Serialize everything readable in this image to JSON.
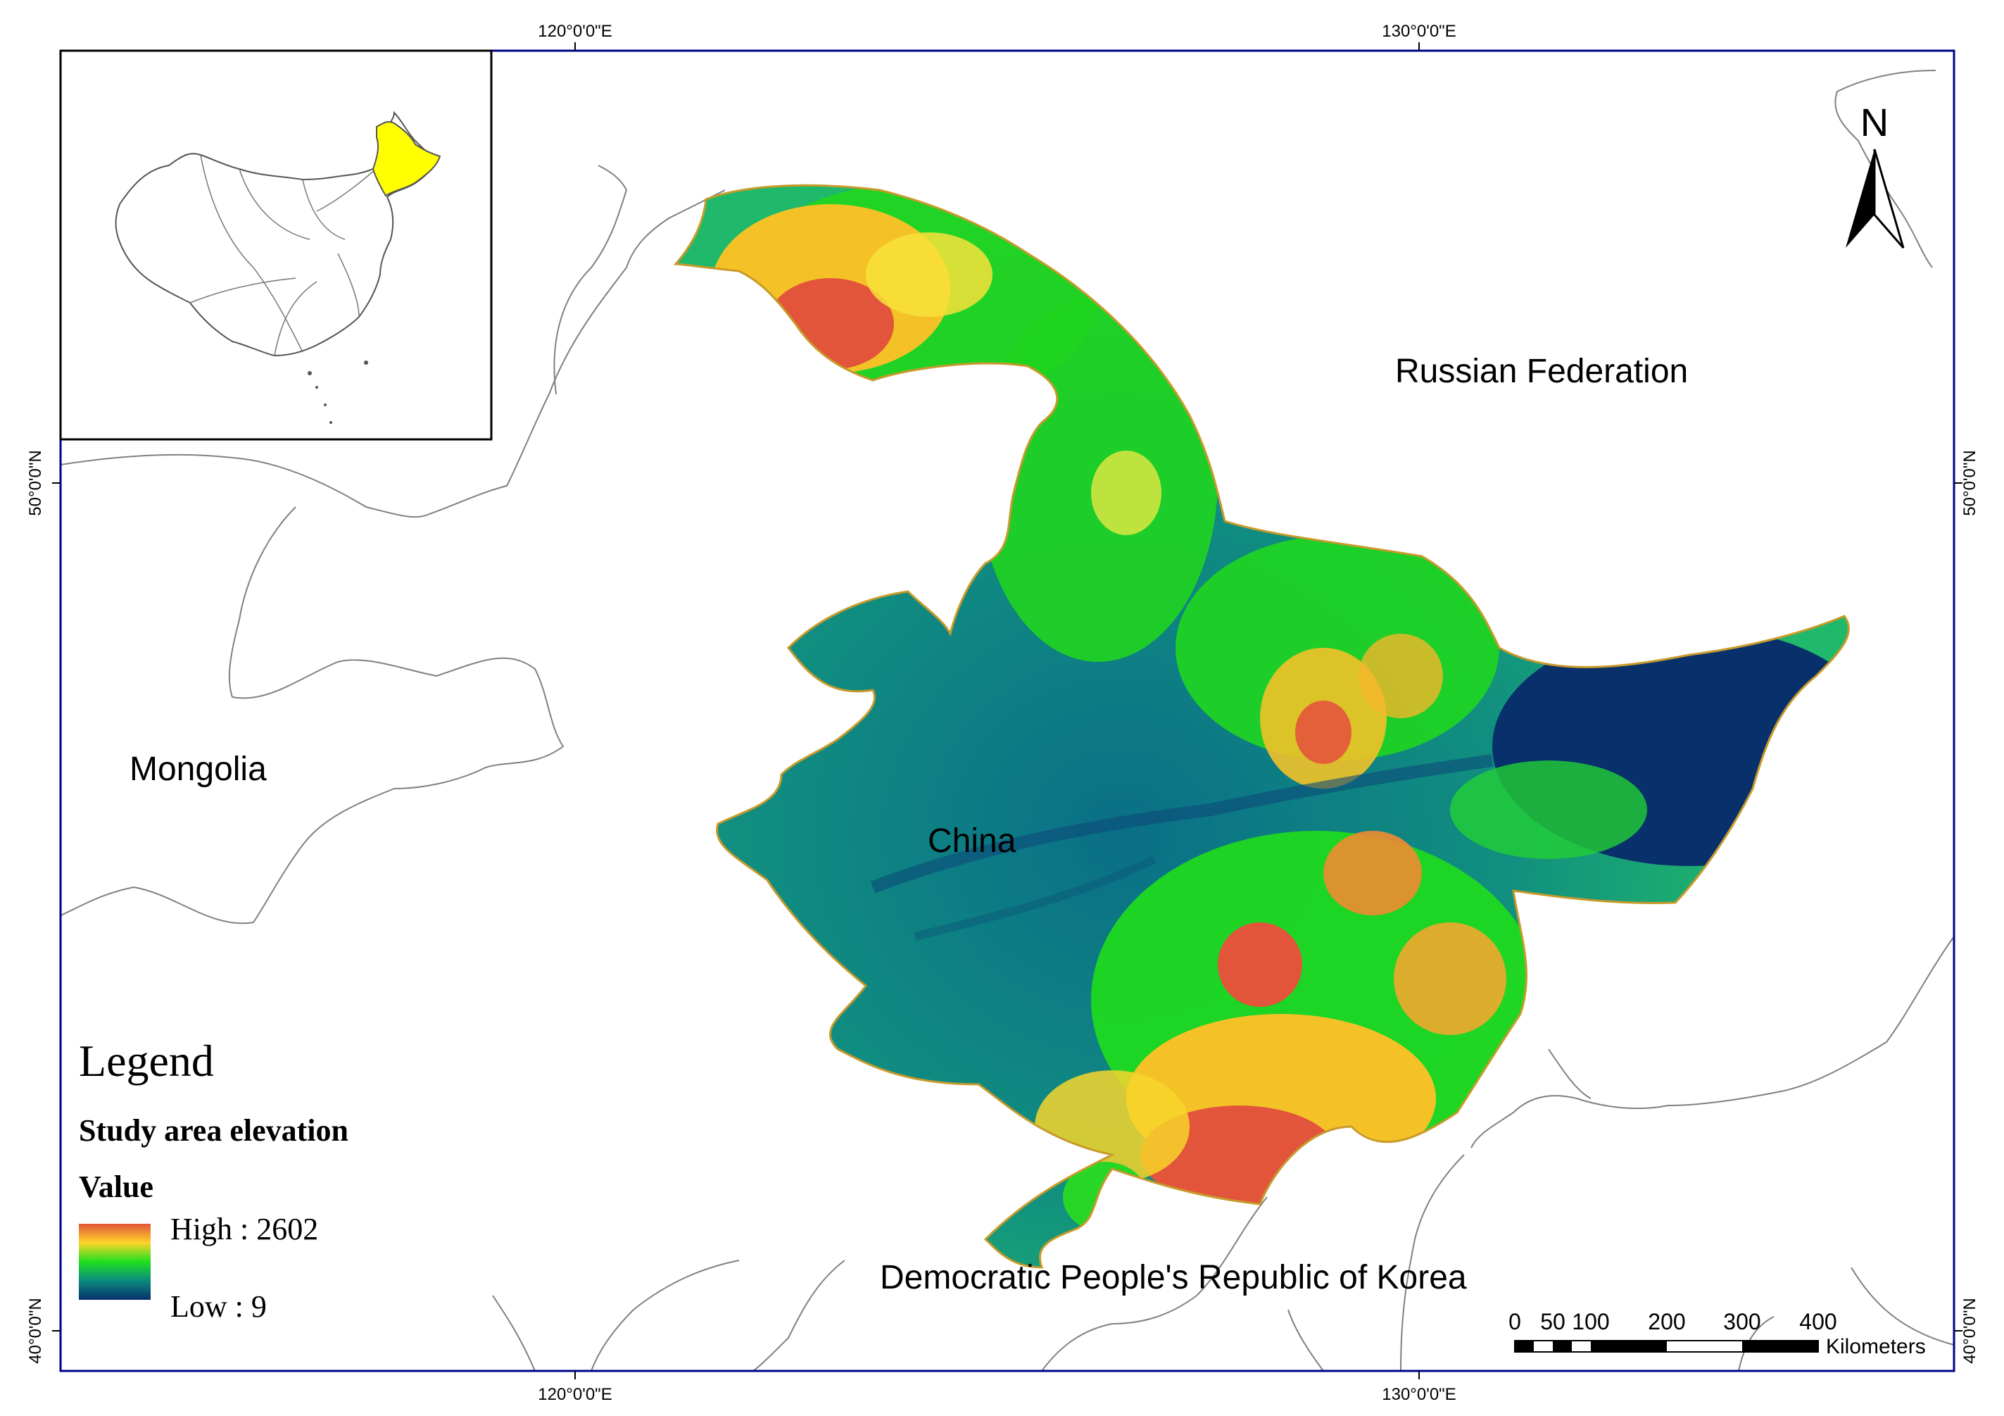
{
  "grid": {
    "top_labels": [
      "120°0'0\"E",
      "130°0'0\"E"
    ],
    "bottom_labels": [
      "120°0'0\"E",
      "130°0'0\"E"
    ],
    "left_labels": [
      "50°0'0\"N",
      "40°0'0\"N"
    ],
    "right_labels": [
      "50°0'0\"N",
      "40°0'0\"N"
    ]
  },
  "places": {
    "russia": "Russian Federation",
    "mongolia": "Mongolia",
    "china": "China",
    "korea": "Democratic People's Republic of Korea"
  },
  "north_arrow": {
    "label": "N",
    "icon": "north-arrow-icon"
  },
  "legend": {
    "title": "Legend",
    "layer": "Study area elevation",
    "field": "Value",
    "high_label": "High : 2602",
    "low_label": "Low : 9",
    "high_value": 2602,
    "low_value": 9,
    "colors": [
      "#e3553a",
      "#fdd42a",
      "#1ee01e",
      "#0a8a7e",
      "#08306b"
    ]
  },
  "scale_bar": {
    "ticks": [
      "0",
      "50",
      "100",
      "200",
      "300",
      "400"
    ],
    "unit": "Kilometers"
  },
  "inset": {
    "highlight_color": "#ffff00",
    "outline_color": "#555555"
  },
  "colors": {
    "frame": "#00008b",
    "border_line": "#808080"
  }
}
